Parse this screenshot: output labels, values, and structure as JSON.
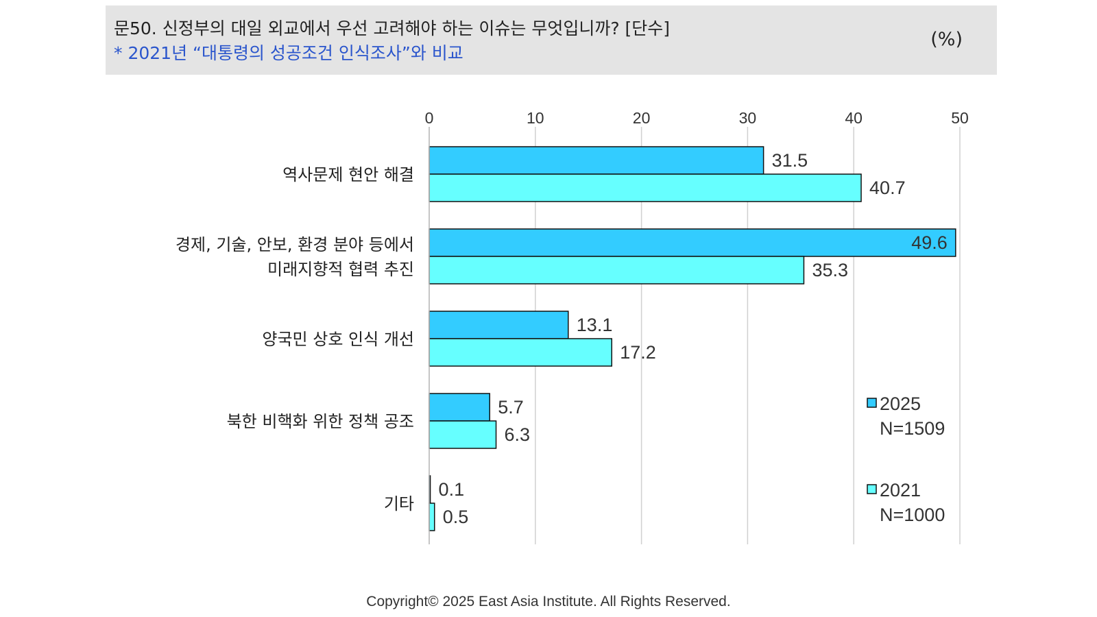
{
  "header": {
    "title": "문50. 신정부의 대일 외교에서 우선 고려해야 하는 이슈는 무엇입니까? [단수]",
    "subtitle": "* 2021년 “대통령의 성공조건 인식조사”와 비교",
    "unit": "(%)"
  },
  "chart_data": {
    "type": "bar",
    "orientation": "horizontal",
    "categories": [
      [
        "역사문제 현안 해결"
      ],
      [
        "경제, 기술, 안보, 환경 분야 등에서",
        "미래지향적 협력 추진"
      ],
      [
        "양국민 상호 인식 개선"
      ],
      [
        "북한 비핵화 위한 정책 공조"
      ],
      [
        "기타"
      ]
    ],
    "series": [
      {
        "name": "2025",
        "sample": "N=1509",
        "color": "#33ccff",
        "values": [
          31.5,
          49.6,
          13.1,
          5.7,
          0.1
        ]
      },
      {
        "name": "2021",
        "sample": "N=1000",
        "color": "#66ffff",
        "values": [
          40.7,
          35.3,
          17.2,
          6.3,
          0.5
        ]
      }
    ],
    "xlim": [
      0,
      50
    ],
    "xticks": [
      0,
      10,
      20,
      30,
      40,
      50
    ],
    "grid": true,
    "legend": "right"
  },
  "footer": {
    "copyright": "Copyright© 2025 East Asia Institute. All Rights Reserved."
  }
}
